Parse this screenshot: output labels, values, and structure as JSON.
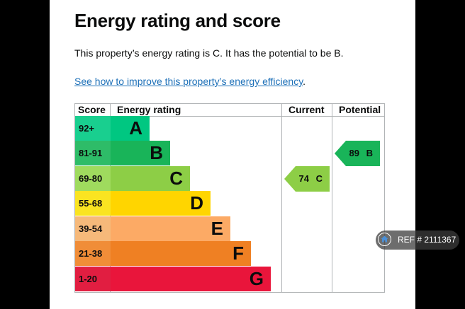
{
  "title": "Energy rating and score",
  "summary": "This property’s energy rating is C. It has the potential to be B.",
  "link": {
    "text": "See how to improve this property’s energy efficiency",
    "suffix": "."
  },
  "table": {
    "headers": {
      "score": "Score",
      "rating": "Energy rating",
      "current": "Current",
      "potential": "Potential"
    },
    "bands": [
      {
        "score": "92+",
        "letter": "A",
        "color": "#00c781"
      },
      {
        "score": "81-91",
        "letter": "B",
        "color": "#19b459"
      },
      {
        "score": "69-80",
        "letter": "C",
        "color": "#8dce46"
      },
      {
        "score": "55-68",
        "letter": "D",
        "color": "#ffd500"
      },
      {
        "score": "39-54",
        "letter": "E",
        "color": "#fcaa65"
      },
      {
        "score": "21-38",
        "letter": "F",
        "color": "#ef8023"
      },
      {
        "score": "1-20",
        "letter": "G",
        "color": "#e9153b"
      }
    ],
    "current": {
      "label": "74 C",
      "color": "#8dce46"
    },
    "potential": {
      "label": "89 B",
      "color": "#19b459"
    }
  },
  "watermark": {
    "text": "REF # 2111367"
  }
}
